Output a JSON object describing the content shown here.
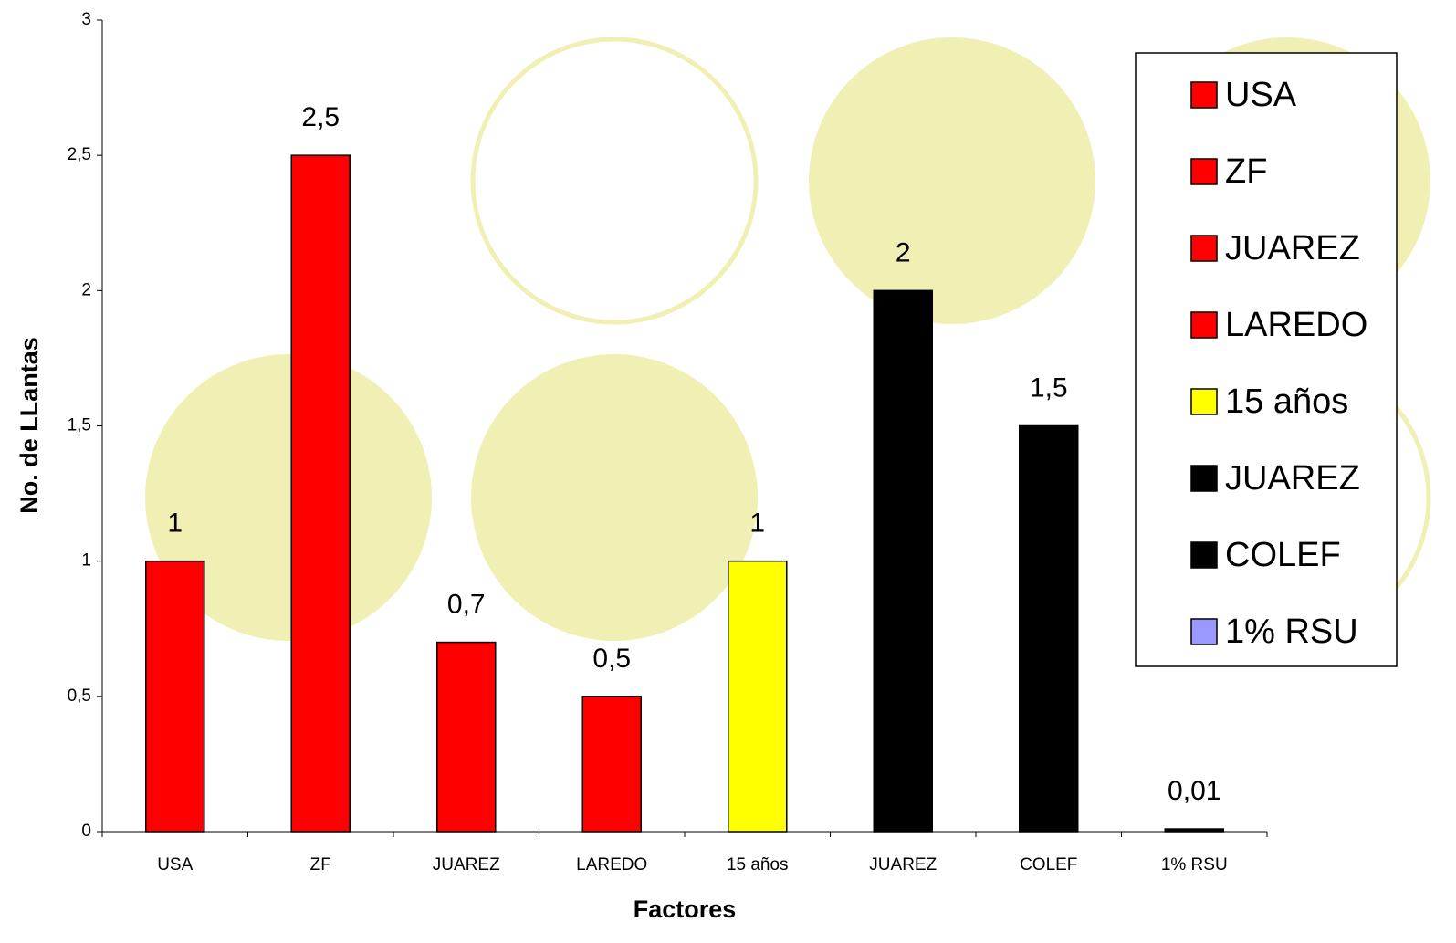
{
  "chart_data": {
    "type": "bar",
    "x_label": "Factores",
    "y_label": "No. de LLantas",
    "categories": [
      "USA",
      "ZF",
      "JUAREZ",
      "LAREDO",
      "15 años",
      "JUAREZ",
      "COLEF",
      "1% RSU"
    ],
    "values": [
      1,
      2.5,
      0.7,
      0.5,
      1,
      2,
      1.5,
      0.01
    ],
    "value_labels": [
      "1",
      "2,5",
      "0,7",
      "0,5",
      "1",
      "2",
      "1,5",
      "0,01"
    ],
    "colors": [
      "#ff0000",
      "#ff0000",
      "#ff0000",
      "#ff0000",
      "#ffff00",
      "#000000",
      "#000000",
      "#9999ff"
    ],
    "ylim": [
      0,
      3
    ],
    "yticks": [
      0,
      {
        "value": 0.5,
        "label": "0,5"
      },
      1,
      {
        "value": 1.5,
        "label": "1,5"
      },
      2,
      {
        "value": 2.5,
        "label": "2,5"
      },
      3
    ],
    "legend": "top-right"
  }
}
